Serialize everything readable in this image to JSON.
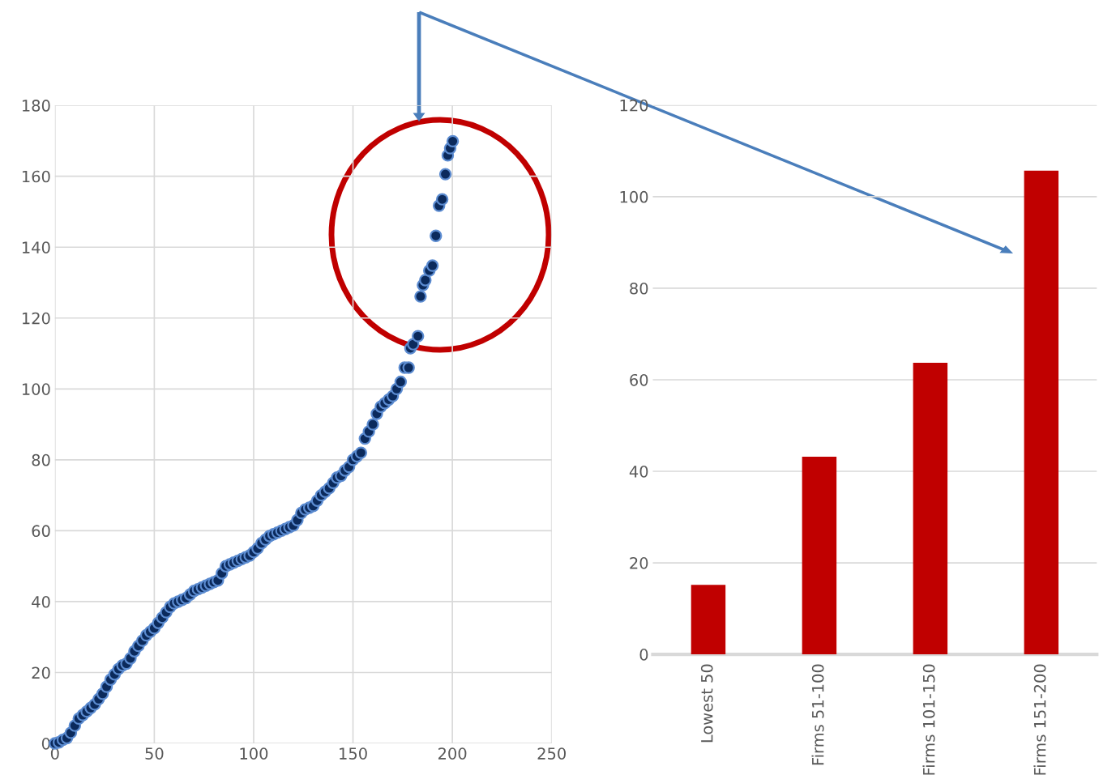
{
  "chart_data": [
    {
      "type": "scatter",
      "xlim": [
        0,
        250
      ],
      "xticks": [
        0,
        50,
        100,
        150,
        200,
        250
      ],
      "ylim": [
        0,
        180
      ],
      "yticks": [
        0,
        20,
        40,
        60,
        80,
        100,
        120,
        140,
        160,
        180
      ],
      "grid": true,
      "marker": "circle",
      "series": [
        {
          "color": "#0b2a5c",
          "x": [
            0,
            2,
            4,
            6,
            8,
            10,
            12,
            14,
            16,
            18,
            20,
            22,
            24,
            26,
            28,
            30,
            32,
            34,
            36,
            38,
            40,
            42,
            44,
            46,
            48,
            50,
            52,
            54,
            56,
            58,
            60,
            62,
            64,
            66,
            68,
            70,
            72,
            74,
            76,
            78,
            80,
            82,
            84,
            86,
            88,
            90,
            92,
            94,
            96,
            98,
            100,
            102,
            104,
            106,
            108,
            110,
            112,
            114,
            116,
            118,
            120,
            122,
            124,
            126,
            128,
            130,
            132,
            134,
            136,
            138,
            140,
            142,
            144,
            146,
            148,
            150,
            152,
            154,
            156,
            158,
            160,
            162,
            164,
            166,
            168,
            170,
            172,
            174,
            176,
            178,
            178.9,
            180.3,
            182.7,
            184,
            185.2,
            186.4,
            188.4,
            190,
            191.7,
            193.3,
            194.9,
            196.5,
            197.7,
            198.9,
            200.2
          ],
          "values": [
            0,
            0.3,
            1,
            1.5,
            3,
            5,
            7,
            8,
            9,
            10,
            11,
            12.5,
            14,
            16,
            18,
            19.5,
            21,
            22,
            22.5,
            24,
            26,
            27.5,
            29,
            30.5,
            31.5,
            32.5,
            34,
            35.5,
            37,
            38.5,
            39.5,
            40,
            40.5,
            41,
            42,
            43,
            43.5,
            44,
            44.5,
            45,
            45.5,
            46,
            48,
            50,
            50.5,
            51,
            51.5,
            52,
            52.5,
            53,
            54,
            55,
            56.5,
            57.5,
            58.5,
            59,
            59.5,
            60,
            60.5,
            61,
            61.5,
            63,
            65,
            66,
            66.5,
            67,
            68.5,
            70,
            71,
            72,
            73.5,
            75,
            75.5,
            77,
            78,
            80,
            81,
            82,
            86,
            88,
            90,
            93,
            95,
            96,
            97,
            98,
            100,
            102,
            106,
            106,
            111.5,
            112.6,
            114.9,
            126.1,
            129.3,
            130.7,
            133.4,
            134.8,
            143.2,
            151.7,
            153.5,
            160.6,
            165.9,
            167.9,
            169.9
          ]
        }
      ]
    },
    {
      "type": "bar",
      "categories": [
        "Lowest 50",
        "Firms 51-100",
        "Firms 101-150",
        "Firms 151-200"
      ],
      "values": [
        15.2,
        43.2,
        63.7,
        105.7
      ],
      "color": "#c00000",
      "ylim": [
        0,
        120
      ],
      "yticks": [
        0,
        20,
        40,
        60,
        80,
        100,
        120
      ],
      "grid": "y"
    }
  ]
}
